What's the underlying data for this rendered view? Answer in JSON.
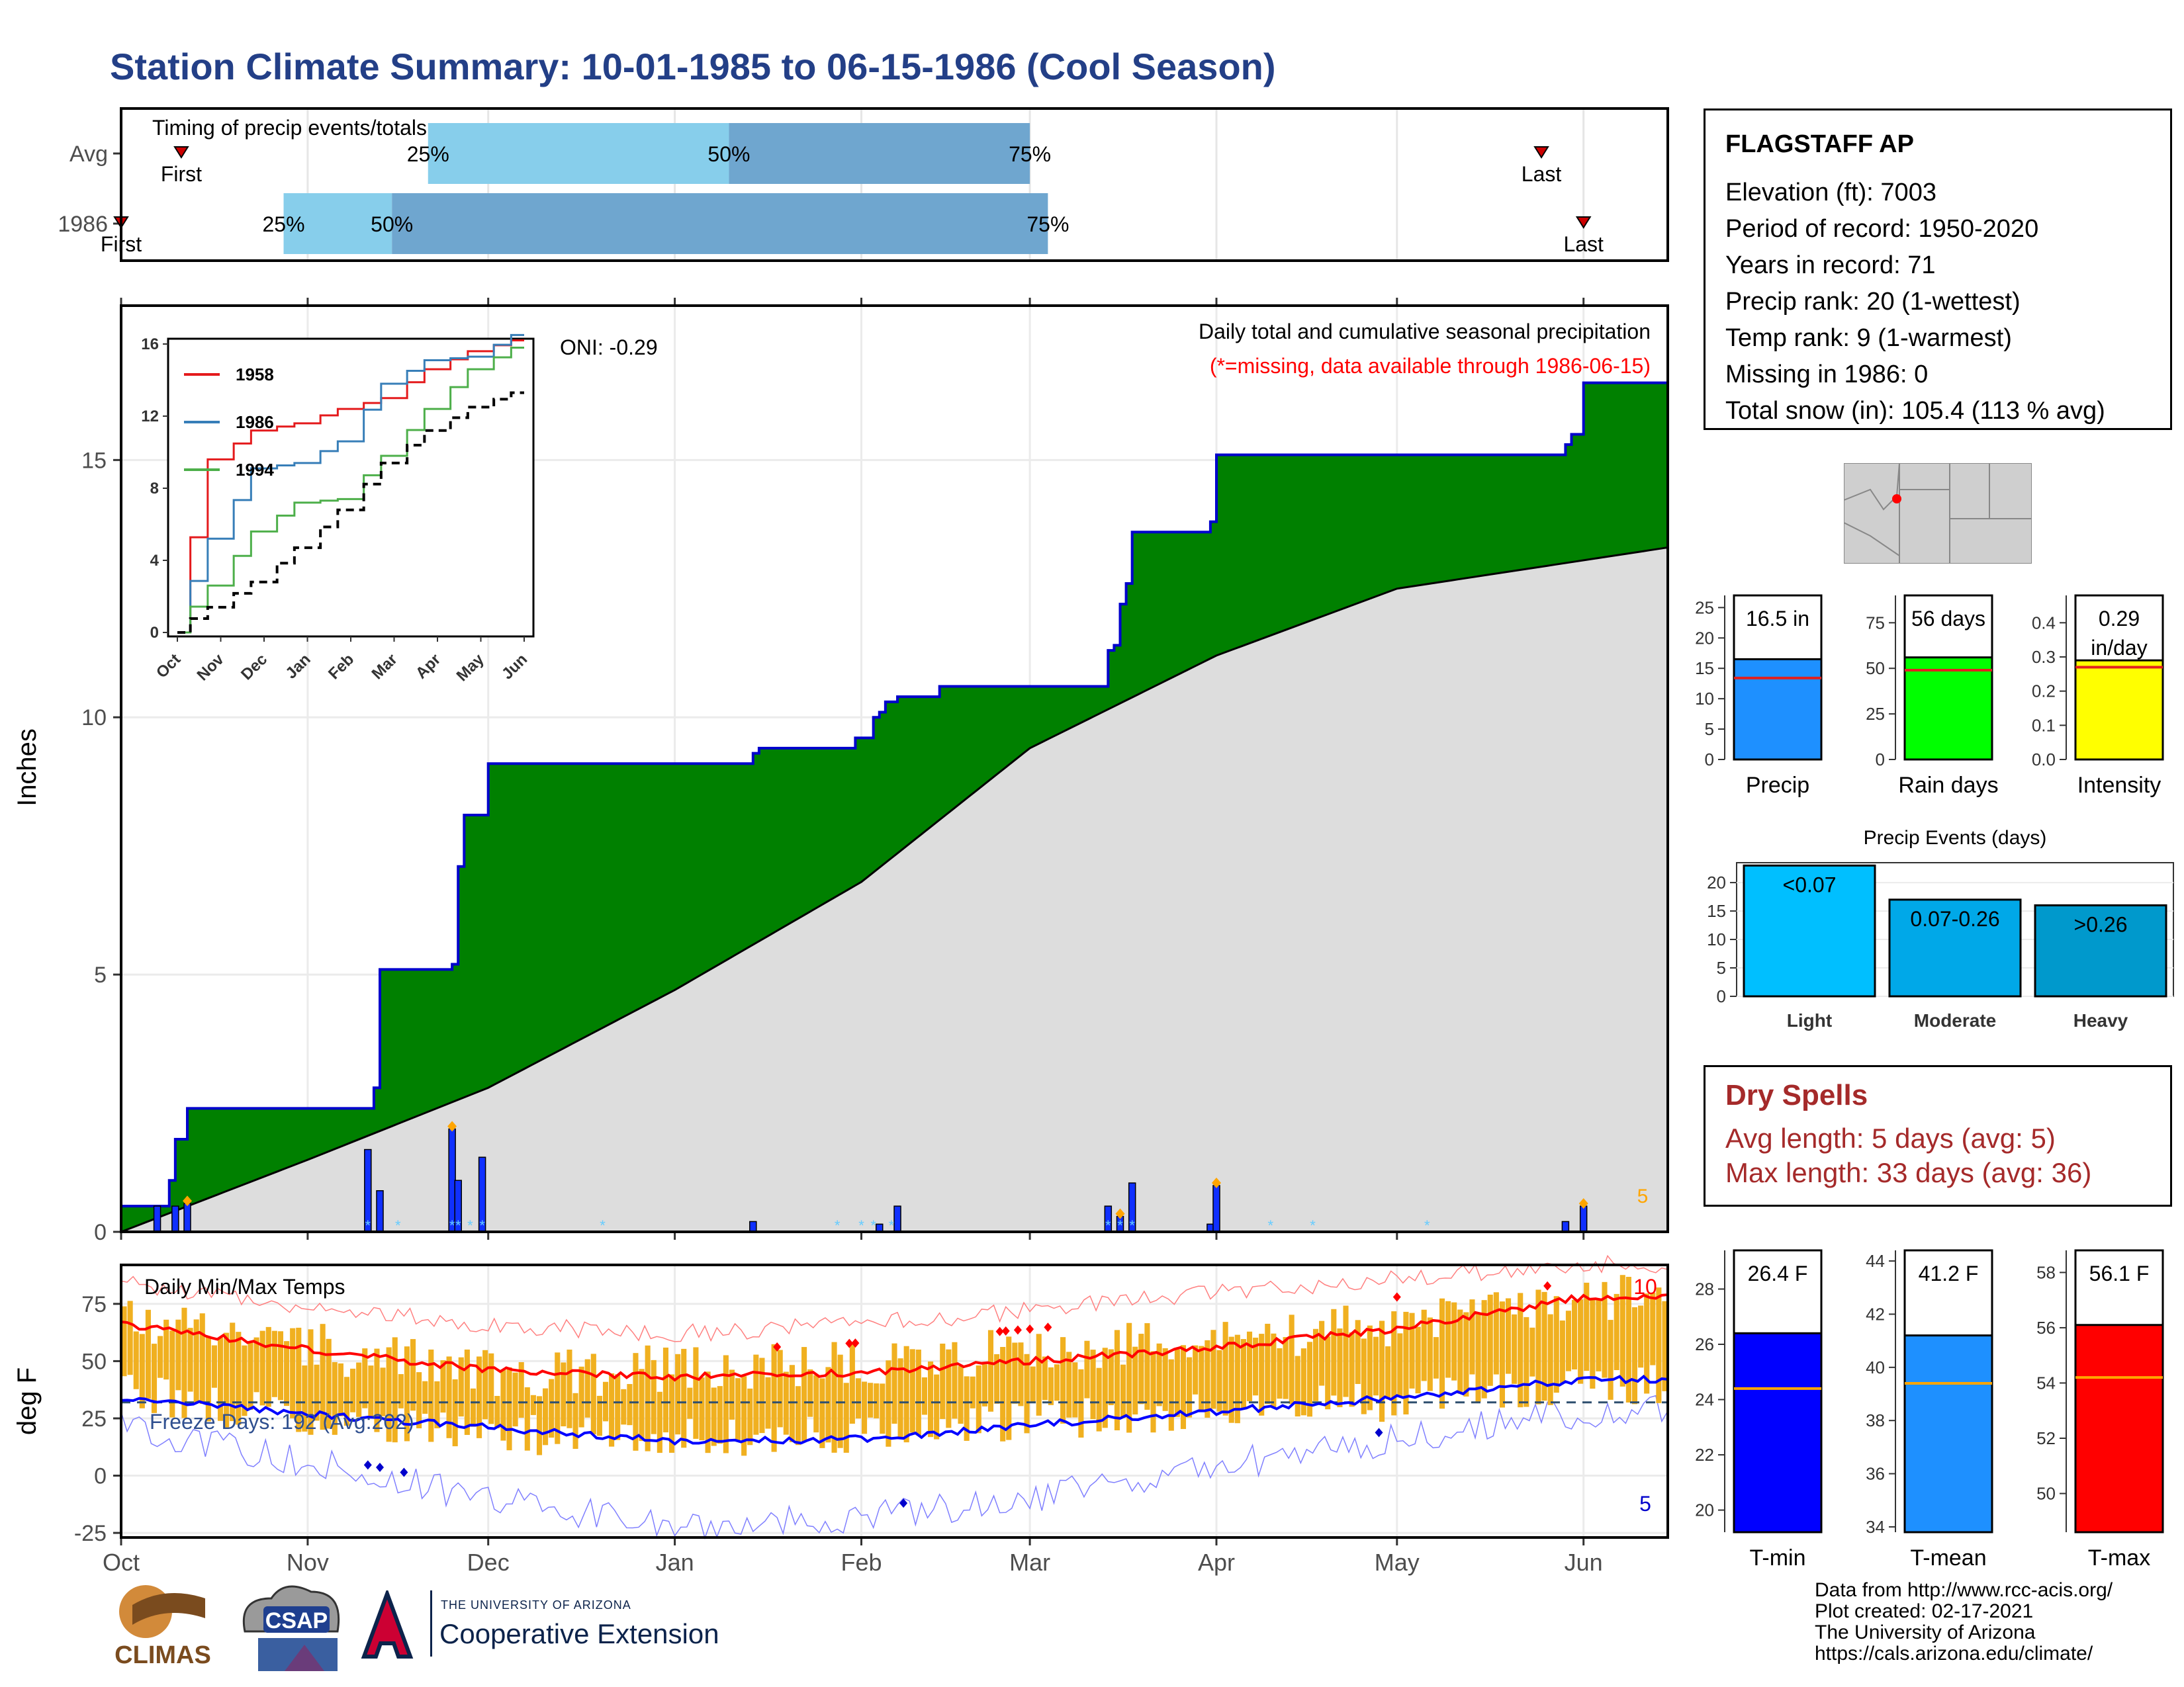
{
  "title": "Station Climate Summary: 10-01-1985 to 06-15-1986 (Cool Season)",
  "colors": {
    "title": "#233f87",
    "precip_fill": "#008000",
    "precip_line": "#0000cc",
    "normal_fill": "#dddddd",
    "tmax_line": "#ff0000",
    "tmin_line": "#0000ff",
    "temp_bars": "#f0b020",
    "q25": "#87ceeb",
    "q50": "#6fa6cf"
  },
  "timing": {
    "label": "Timing of precip events/totals",
    "rows": [
      {
        "name": "Avg",
        "q25_label": "25%",
        "q50_label": "50%",
        "q75_label": "75%",
        "first_label": "First",
        "last_label": "Last",
        "q25": "1985-11-21",
        "q50": "1986-01-10",
        "q75": "1986-03-01",
        "first": "1985-10-11",
        "last": "1986-05-25"
      },
      {
        "name": "1986",
        "q25_label": "25%",
        "q50_label": "50%",
        "q75_label": "75%",
        "first_label": "First",
        "last_label": "Last",
        "q25": "1985-10-28",
        "q50": "1985-11-15",
        "q75": "1986-03-04",
        "first": "1985-10-01",
        "last": "1986-06-01"
      }
    ]
  },
  "precip_panel": {
    "ylabel": "Inches",
    "note_title": "Daily total and cumulative seasonal precipitation",
    "note_missing": "(*=missing, data available through 1986-06-15)",
    "oni": "ONI: -0.29",
    "count_label": "5",
    "month_labels": [
      "Oct",
      "Nov",
      "Dec",
      "Jan",
      "Feb",
      "Mar",
      "Apr",
      "May",
      "Jun"
    ]
  },
  "inset": {
    "series_names": [
      "1958",
      "1986",
      "1994"
    ],
    "series_colors": [
      "#e41a1c",
      "#377eb8",
      "#4daf4a"
    ],
    "month_labels": [
      "Oct",
      "Nov",
      "Dec",
      "Jan",
      "Feb",
      "Mar",
      "Apr",
      "May",
      "Jun"
    ],
    "y_ticks": [
      "0",
      "4",
      "8",
      "12",
      "16"
    ]
  },
  "temp_panel": {
    "ylabel": "deg F",
    "label": "Daily Min/Max Temps",
    "freeze": "Freeze Days: 192 (Avg:202)",
    "max_count": "10",
    "min_count": "5",
    "month_labels": [
      "Oct",
      "Nov",
      "Dec",
      "Jan",
      "Feb",
      "Mar",
      "Apr",
      "May",
      "Jun"
    ]
  },
  "station": {
    "name": "FLAGSTAFF AP",
    "lines": [
      "Elevation (ft): 7003",
      "Period of record: 1950-2020",
      "Years in record: 71",
      "Precip rank: 20 (1-wettest)",
      "Temp rank: 9 (1-warmest)",
      "Missing in 1986: 0",
      "Total snow (in): 105.4 (113 % avg)"
    ]
  },
  "dry_spells": {
    "title": "Dry Spells",
    "avg": "Avg length: 5 days (avg: 5)",
    "max": "Max length: 33 days (avg: 36)"
  },
  "summary_bars": [
    {
      "label": "Precip",
      "value_text": "16.5 in",
      "value": 16.5,
      "avg": 13.4,
      "ylim": [
        0,
        27
      ],
      "ticks": [
        "0",
        "5",
        "10",
        "15",
        "20",
        "25"
      ],
      "tickvals": [
        0,
        5,
        10,
        15,
        20,
        25
      ],
      "color": "#1e90ff"
    },
    {
      "label": "Rain days",
      "value_text": "56 days",
      "value": 56,
      "avg": 49,
      "ylim": [
        0,
        90
      ],
      "ticks": [
        "0",
        "25",
        "50",
        "75"
      ],
      "tickvals": [
        0,
        25,
        50,
        75
      ],
      "color": "#00ff00"
    },
    {
      "label": "Intensity",
      "value_text": "0.29 in/day",
      "value": 0.29,
      "avg": 0.27,
      "ylim": [
        0,
        0.48
      ],
      "ticks": [
        "0.0",
        "0.1",
        "0.2",
        "0.3",
        "0.4"
      ],
      "tickvals": [
        0,
        0.1,
        0.2,
        0.3,
        0.4
      ],
      "color": "#ffff00"
    }
  ],
  "precip_events": {
    "title": "Precip Events (days)",
    "categories": [
      "Light",
      "Moderate",
      "Heavy"
    ],
    "bar_labels": [
      "<0.07",
      "0.07-0.26",
      ">0.26"
    ],
    "values": [
      23,
      17,
      16
    ],
    "colors": [
      "#00bfff",
      "#00a8e8",
      "#0099cc"
    ],
    "ylim": [
      0,
      23.5
    ],
    "ticks": [
      "0",
      "5",
      "10",
      "15",
      "20"
    ]
  },
  "temp_bars": [
    {
      "label": "T-min",
      "value_text": "26.4 F",
      "value": 26.4,
      "avg": 24.4,
      "ylim": [
        19.2,
        29.4
      ],
      "ticks": [
        "20",
        "22",
        "24",
        "26",
        "28"
      ],
      "tickvals": [
        20,
        22,
        24,
        26,
        28
      ],
      "color": "#0000ff"
    },
    {
      "label": "T-mean",
      "value_text": "41.2 F",
      "value": 41.2,
      "avg": 39.4,
      "ylim": [
        33.8,
        44.4
      ],
      "ticks": [
        "34",
        "36",
        "38",
        "40",
        "42",
        "44"
      ],
      "tickvals": [
        34,
        36,
        38,
        40,
        42,
        44
      ],
      "color": "#1e90ff"
    },
    {
      "label": "T-max",
      "value_text": "56.1 F",
      "value": 56.1,
      "avg": 54.2,
      "ylim": [
        48.6,
        58.8
      ],
      "ticks": [
        "50",
        "52",
        "54",
        "56",
        "58"
      ],
      "tickvals": [
        50,
        52,
        54,
        56,
        58
      ],
      "color": "#ff0000"
    }
  ],
  "logos": {
    "climas": "CLIMAS",
    "csap": "CSAP",
    "ua_small": "THE UNIVERSITY OF ARIZONA",
    "ua_big": "Cooperative Extension"
  },
  "credits": [
    "Data from http://www.rcc-acis.org/",
    "Plot created: 02-17-2021",
    "The University of Arizona",
    "https://cals.arizona.edu/climate/"
  ],
  "chart_data": [
    {
      "type": "area",
      "title": "Daily total and cumulative seasonal precipitation",
      "ylabel": "Inches",
      "ylim": [
        0,
        18
      ],
      "x_dates": [
        "1985-10-01",
        "1985-10-07",
        "1985-10-09",
        "1985-10-10",
        "1985-10-12",
        "1985-11-11",
        "1985-11-12",
        "1985-11-13",
        "1985-11-25",
        "1985-11-26",
        "1985-11-27",
        "1985-12-01",
        "1985-12-02",
        "1986-01-14",
        "1986-01-15",
        "1986-01-31",
        "1986-02-03",
        "1986-02-04",
        "1986-02-05",
        "1986-02-07",
        "1986-02-14",
        "1986-03-14",
        "1986-03-15",
        "1986-03-16",
        "1986-03-17",
        "1986-03-18",
        "1986-03-31",
        "1986-04-01",
        "1986-05-29",
        "1986-05-30",
        "1986-06-01",
        "1986-06-15"
      ],
      "cumulative_1986": [
        0.5,
        0.5,
        1.0,
        1.8,
        2.4,
        2.4,
        2.8,
        5.1,
        5.2,
        7.1,
        8.1,
        9.1,
        9.1,
        9.3,
        9.4,
        9.6,
        10.0,
        10.1,
        10.3,
        10.4,
        10.6,
        11.3,
        11.4,
        12.2,
        12.6,
        13.6,
        13.8,
        15.1,
        15.3,
        15.5,
        16.5,
        16.5
      ],
      "normal_cumulative": {
        "x": [
          "1985-10-01",
          "1985-11-01",
          "1985-12-01",
          "1986-01-01",
          "1986-02-01",
          "1986-03-01",
          "1986-04-01",
          "1986-05-01",
          "1986-06-15"
        ],
        "values": [
          0.0,
          1.4,
          2.8,
          4.7,
          6.8,
          9.4,
          11.2,
          12.5,
          13.3
        ]
      },
      "daily_bars": {
        "x": [
          "1985-10-07",
          "1985-10-10",
          "1985-10-12",
          "1985-11-11",
          "1985-11-13",
          "1985-11-25",
          "1985-11-26",
          "1985-11-30",
          "1986-01-14",
          "1986-02-04",
          "1986-02-07",
          "1986-03-14",
          "1986-03-16",
          "1986-03-18",
          "1986-03-31",
          "1986-04-01",
          "1986-05-29",
          "1986-06-01"
        ],
        "values": [
          0.5,
          0.5,
          0.55,
          1.6,
          0.8,
          2.0,
          1.0,
          1.45,
          0.2,
          0.15,
          0.5,
          0.5,
          0.3,
          0.95,
          0.15,
          0.9,
          0.2,
          0.5
        ]
      }
    },
    {
      "type": "line",
      "title": "",
      "xlabel": "",
      "ylabel": "",
      "x": [
        "Oct",
        "Nov",
        "Dec",
        "Jan",
        "Feb",
        "Mar",
        "Apr",
        "May",
        "Jun"
      ],
      "ylim": [
        0,
        16
      ],
      "series": [
        {
          "name": "1958",
          "values": [
            0,
            9.6,
            11.2,
            11.6,
            12.4,
            13.0,
            14.6,
            15.6,
            16.2
          ]
        },
        {
          "name": "1986",
          "values": [
            0,
            5.2,
            9.1,
            9.4,
            10.6,
            13.8,
            15.1,
            15.3,
            16.5
          ]
        },
        {
          "name": "1994",
          "values": [
            0,
            2.6,
            5.6,
            7.2,
            7.4,
            9.8,
            12.4,
            14.6,
            15.8
          ]
        },
        {
          "name": "Avg",
          "values": [
            0,
            1.4,
            2.8,
            4.7,
            6.8,
            9.4,
            11.2,
            12.5,
            13.3
          ]
        }
      ]
    },
    {
      "type": "bar",
      "title": "Daily Min/Max Temps",
      "ylabel": "deg F",
      "ylim": [
        -27,
        92
      ],
      "x_months": [
        "Oct",
        "Nov",
        "Dec",
        "Jan",
        "Feb",
        "Mar",
        "Apr",
        "May",
        "Jun"
      ],
      "tmax_monthly": [
        70,
        56,
        45,
        46,
        50,
        55,
        58,
        66,
        78
      ],
      "tmin_monthly": [
        36,
        25,
        18,
        16,
        19,
        24,
        28,
        33,
        40
      ],
      "avg_max_monthly": [
        66,
        55,
        46,
        43,
        45,
        50,
        56,
        64,
        78
      ],
      "avg_min_monthly": [
        34,
        27,
        21,
        15,
        16,
        22,
        28,
        34,
        42
      ],
      "record_max_monthly": [
        84,
        74,
        66,
        62,
        66,
        72,
        80,
        86,
        92
      ],
      "record_min_monthly": [
        22,
        6,
        -10,
        -22,
        -18,
        -10,
        4,
        16,
        28
      ],
      "freeze_line": 32
    }
  ]
}
